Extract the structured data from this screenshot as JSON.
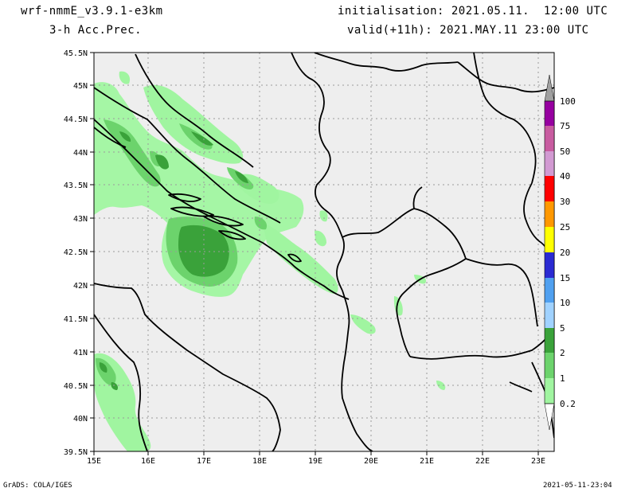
{
  "header": {
    "model": "wrf-nmmE_v3.9.1-e3km",
    "field": "3-h Acc.Prec.",
    "init": "initialisation: 2021.05.11.  12:00 UTC",
    "valid": "valid(+11h): 2021.MAY.11 23:00 UTC"
  },
  "footer": {
    "credit": "GrADS: COLA/IGES",
    "timestamp": "2021-05-11-23:04"
  },
  "axes": {
    "lat_labels": [
      "45.5N",
      "45N",
      "44.5N",
      "44N",
      "43.5N",
      "43N",
      "42.5N",
      "42N",
      "41.5N",
      "41N",
      "40.5N",
      "40N",
      "39.5N"
    ],
    "lon_labels": [
      "15E",
      "16E",
      "17E",
      "18E",
      "19E",
      "20E",
      "21E",
      "22E",
      "23E"
    ]
  },
  "legend": {
    "levels": [
      "0.2",
      "1",
      "2",
      "5",
      "10",
      "15",
      "20",
      "25",
      "30",
      "40",
      "50",
      "75",
      "100"
    ],
    "colors": [
      "#ffffff",
      "#a0f5a0",
      "#6cd36c",
      "#3aa23a",
      "#a0d2ff",
      "#50a0f0",
      "#2a2ad2",
      "#ffff00",
      "#ff9800",
      "#ff0000",
      "#d29ad2",
      "#c85ca0",
      "#9600a0",
      "#a0a0a0"
    ]
  }
}
